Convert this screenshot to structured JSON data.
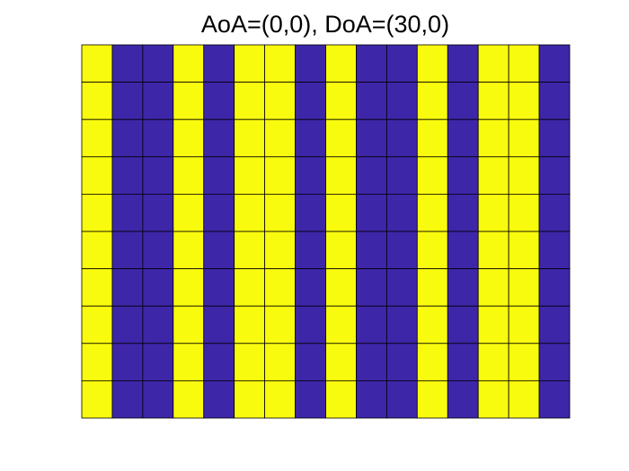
{
  "chart_data": {
    "type": "heatmap",
    "title": "AoA=(0,0), DoA=(30,0)",
    "colormap": [
      "#3e26a8",
      "#f9fb0e"
    ],
    "values": [
      [
        1,
        0,
        0,
        1,
        0,
        1,
        1,
        0,
        1,
        0,
        0,
        1,
        0,
        1,
        1,
        0
      ],
      [
        1,
        0,
        0,
        1,
        0,
        1,
        1,
        0,
        1,
        0,
        0,
        1,
        0,
        1,
        1,
        0
      ],
      [
        1,
        0,
        0,
        1,
        0,
        1,
        1,
        0,
        1,
        0,
        0,
        1,
        0,
        1,
        1,
        0
      ],
      [
        1,
        0,
        0,
        1,
        0,
        1,
        1,
        0,
        1,
        0,
        0,
        1,
        0,
        1,
        1,
        0
      ],
      [
        1,
        0,
        0,
        1,
        0,
        1,
        1,
        0,
        1,
        0,
        0,
        1,
        0,
        1,
        1,
        0
      ],
      [
        1,
        0,
        0,
        1,
        0,
        1,
        1,
        0,
        1,
        0,
        0,
        1,
        0,
        1,
        1,
        0
      ],
      [
        1,
        0,
        0,
        1,
        0,
        1,
        1,
        0,
        1,
        0,
        0,
        1,
        0,
        1,
        1,
        0
      ],
      [
        1,
        0,
        0,
        1,
        0,
        1,
        1,
        0,
        1,
        0,
        0,
        1,
        0,
        1,
        1,
        0
      ],
      [
        1,
        0,
        0,
        1,
        0,
        1,
        1,
        0,
        1,
        0,
        0,
        1,
        0,
        1,
        1,
        0
      ],
      [
        1,
        0,
        0,
        1,
        0,
        1,
        1,
        0,
        1,
        0,
        0,
        1,
        0,
        1,
        1,
        0
      ]
    ]
  }
}
